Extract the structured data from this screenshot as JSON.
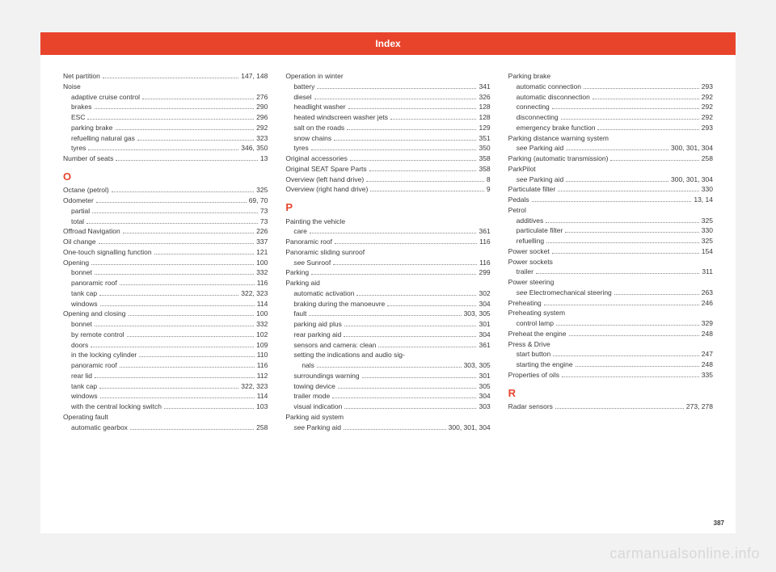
{
  "header": "Index",
  "page_number": "387",
  "watermark": "carmanualsonline.info",
  "columns": [
    [
      {
        "t": "entry",
        "label": "Net partition",
        "pages": "147, 148"
      },
      {
        "t": "entry",
        "label": "Noise"
      },
      {
        "t": "sub",
        "label": "adaptive cruise control",
        "pages": "276"
      },
      {
        "t": "sub",
        "label": "brakes",
        "pages": "290"
      },
      {
        "t": "sub",
        "label": "ESC",
        "pages": "296"
      },
      {
        "t": "sub",
        "label": "parking brake",
        "pages": "292"
      },
      {
        "t": "sub",
        "label": "refuelling natural gas",
        "pages": "323"
      },
      {
        "t": "sub",
        "label": "tyres",
        "pages": "346, 350"
      },
      {
        "t": "entry",
        "label": "Number of seats",
        "pages": "13"
      },
      {
        "t": "letter",
        "label": "O"
      },
      {
        "t": "entry",
        "label": "Octane (petrol)",
        "pages": "325"
      },
      {
        "t": "entry",
        "label": "Odometer",
        "pages": "69, 70"
      },
      {
        "t": "sub",
        "label": "partial",
        "pages": "73"
      },
      {
        "t": "sub",
        "label": "total",
        "pages": "73"
      },
      {
        "t": "entry",
        "label": "Offroad Navigation",
        "pages": "226"
      },
      {
        "t": "entry",
        "label": "Oil change",
        "pages": "337"
      },
      {
        "t": "entry",
        "label": "One-touch signalling function",
        "pages": "121"
      },
      {
        "t": "entry",
        "label": "Opening",
        "pages": "100"
      },
      {
        "t": "sub",
        "label": "bonnet",
        "pages": "332"
      },
      {
        "t": "sub",
        "label": "panoramic roof",
        "pages": "116"
      },
      {
        "t": "sub",
        "label": "tank cap",
        "pages": "322, 323"
      },
      {
        "t": "sub",
        "label": "windows",
        "pages": "114"
      },
      {
        "t": "entry",
        "label": "Opening and closing",
        "pages": "100"
      },
      {
        "t": "sub",
        "label": "bonnet",
        "pages": "332"
      },
      {
        "t": "sub",
        "label": "by remote control",
        "pages": "102"
      },
      {
        "t": "sub",
        "label": "doors",
        "pages": "109"
      },
      {
        "t": "sub",
        "label": "in the locking cylinder",
        "pages": "110"
      },
      {
        "t": "sub",
        "label": "panoramic roof",
        "pages": "116"
      },
      {
        "t": "sub",
        "label": "rear lid",
        "pages": "112"
      },
      {
        "t": "sub",
        "label": "tank cap",
        "pages": "322, 323"
      },
      {
        "t": "sub",
        "label": "windows",
        "pages": "114"
      },
      {
        "t": "sub",
        "label": "with the central locking switch",
        "pages": "103"
      },
      {
        "t": "entry",
        "label": "Operating fault"
      },
      {
        "t": "sub",
        "label": "automatic gearbox",
        "pages": "258"
      }
    ],
    [
      {
        "t": "entry",
        "label": "Operation in winter"
      },
      {
        "t": "sub",
        "label": "battery",
        "pages": "341"
      },
      {
        "t": "sub",
        "label": "diesel",
        "pages": "326"
      },
      {
        "t": "sub",
        "label": "headlight washer",
        "pages": "128"
      },
      {
        "t": "sub",
        "label": "heated windscreen washer jets",
        "pages": "128"
      },
      {
        "t": "sub",
        "label": "salt on the roads",
        "pages": "129"
      },
      {
        "t": "sub",
        "label": "snow chains",
        "pages": "351"
      },
      {
        "t": "sub",
        "label": "tyres",
        "pages": "350"
      },
      {
        "t": "entry",
        "label": "Original accessories",
        "pages": "358"
      },
      {
        "t": "entry",
        "label": "Original SEAT Spare Parts",
        "pages": "358"
      },
      {
        "t": "entry",
        "label": "Overview (left hand drive)",
        "pages": "8"
      },
      {
        "t": "entry",
        "label": "Overview (right hand drive)",
        "pages": "9"
      },
      {
        "t": "letter",
        "label": "P"
      },
      {
        "t": "entry",
        "label": "Painting the vehicle"
      },
      {
        "t": "sub",
        "label": "care",
        "pages": "361"
      },
      {
        "t": "entry",
        "label": "Panoramic roof",
        "pages": "116"
      },
      {
        "t": "entry",
        "label": "Panoramic sliding sunroof"
      },
      {
        "t": "sub",
        "prefix": "see ",
        "label": "Sunroof",
        "pages": "116",
        "ital": true
      },
      {
        "t": "entry",
        "label": "Parking",
        "pages": "299"
      },
      {
        "t": "entry",
        "label": "Parking aid"
      },
      {
        "t": "sub",
        "label": "automatic activation",
        "pages": "302"
      },
      {
        "t": "sub",
        "label": "braking during the manoeuvre",
        "pages": "304"
      },
      {
        "t": "sub",
        "label": "fault",
        "pages": "303, 305"
      },
      {
        "t": "sub",
        "label": "parking aid plus",
        "pages": "301"
      },
      {
        "t": "sub",
        "label": "rear parking aid",
        "pages": "304"
      },
      {
        "t": "sub",
        "label": "sensors and camera: clean",
        "pages": "361"
      },
      {
        "t": "sub",
        "label": "setting the indications and audio sig-"
      },
      {
        "t": "subsub",
        "label": "nals",
        "pages": "303, 305"
      },
      {
        "t": "sub",
        "label": "surroundings warning",
        "pages": "301"
      },
      {
        "t": "sub",
        "label": "towing device",
        "pages": "305"
      },
      {
        "t": "sub",
        "label": "trailer mode",
        "pages": "304"
      },
      {
        "t": "sub",
        "label": "visual indication",
        "pages": "303"
      },
      {
        "t": "entry",
        "label": "Parking aid system"
      },
      {
        "t": "sub",
        "prefix": "see ",
        "label": "Parking aid",
        "pages": "300, 301, 304",
        "ital": true
      }
    ],
    [
      {
        "t": "entry",
        "label": "Parking brake"
      },
      {
        "t": "sub",
        "label": "automatic connection",
        "pages": "293"
      },
      {
        "t": "sub",
        "label": "automatic disconnection",
        "pages": "292"
      },
      {
        "t": "sub",
        "label": "connecting",
        "pages": "292"
      },
      {
        "t": "sub",
        "label": "disconnecting",
        "pages": "292"
      },
      {
        "t": "sub",
        "label": "emergency brake function",
        "pages": "293"
      },
      {
        "t": "entry",
        "label": "Parking distance warning system"
      },
      {
        "t": "sub",
        "prefix": "see ",
        "label": "Parking aid",
        "pages": "300, 301, 304",
        "ital": true
      },
      {
        "t": "entry",
        "label": "Parking (automatic transmission)",
        "pages": "258"
      },
      {
        "t": "entry",
        "label": "ParkPilot"
      },
      {
        "t": "sub",
        "prefix": "see ",
        "label": "Parking aid",
        "pages": "300, 301, 304",
        "ital": true
      },
      {
        "t": "entry",
        "label": "Particulate filter",
        "pages": "330"
      },
      {
        "t": "entry",
        "label": "Pedals",
        "pages": "13, 14"
      },
      {
        "t": "entry",
        "label": "Petrol"
      },
      {
        "t": "sub",
        "label": "additives",
        "pages": "325"
      },
      {
        "t": "sub",
        "label": "particulate filter",
        "pages": "330"
      },
      {
        "t": "sub",
        "label": "refuelling",
        "pages": "325"
      },
      {
        "t": "entry",
        "label": "Power socket",
        "pages": "154"
      },
      {
        "t": "entry",
        "label": "Power sockets"
      },
      {
        "t": "sub",
        "label": "trailer",
        "pages": "311"
      },
      {
        "t": "entry",
        "label": "Power steering"
      },
      {
        "t": "sub",
        "prefix": "see ",
        "label": "Electromechanical steering",
        "pages": "263",
        "ital": true
      },
      {
        "t": "entry",
        "label": "Preheating",
        "pages": "246"
      },
      {
        "t": "entry",
        "label": "Preheating system"
      },
      {
        "t": "sub",
        "label": "control lamp",
        "pages": "329"
      },
      {
        "t": "entry",
        "label": "Preheat the engine",
        "pages": "248"
      },
      {
        "t": "entry",
        "label": "Press & Drive"
      },
      {
        "t": "sub",
        "label": "start button",
        "pages": "247"
      },
      {
        "t": "sub",
        "label": "starting the engine",
        "pages": "248"
      },
      {
        "t": "entry",
        "label": "Properties of oils",
        "pages": "335"
      },
      {
        "t": "letter",
        "label": "R"
      },
      {
        "t": "entry",
        "label": "Radar sensors",
        "pages": "273, 278"
      }
    ]
  ]
}
